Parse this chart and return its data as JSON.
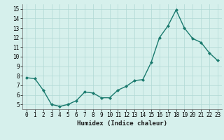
{
  "x": [
    0,
    1,
    2,
    3,
    4,
    5,
    6,
    7,
    8,
    9,
    10,
    11,
    12,
    13,
    14,
    15,
    16,
    17,
    18,
    19,
    20,
    21,
    22,
    23
  ],
  "y": [
    7.8,
    7.7,
    6.5,
    5.0,
    4.8,
    5.0,
    5.4,
    6.3,
    6.2,
    5.7,
    5.7,
    6.5,
    6.9,
    7.5,
    7.6,
    9.4,
    12.0,
    13.2,
    14.9,
    13.0,
    11.9,
    11.5,
    10.4,
    9.6
  ],
  "line_color": "#1a7a6e",
  "marker": "D",
  "marker_size": 2.0,
  "linewidth": 1.0,
  "xlabel": "Humidex (Indice chaleur)",
  "ylim": [
    4.5,
    15.5
  ],
  "xlim": [
    -0.5,
    23.5
  ],
  "yticks": [
    5,
    6,
    7,
    8,
    9,
    10,
    11,
    12,
    13,
    14,
    15
  ],
  "xticks": [
    0,
    1,
    2,
    3,
    4,
    5,
    6,
    7,
    8,
    9,
    10,
    11,
    12,
    13,
    14,
    15,
    16,
    17,
    18,
    19,
    20,
    21,
    22,
    23
  ],
  "bg_color": "#d6f0ec",
  "grid_color": "#b0d8d4",
  "xlabel_fontsize": 6.5,
  "tick_fontsize": 5.5
}
